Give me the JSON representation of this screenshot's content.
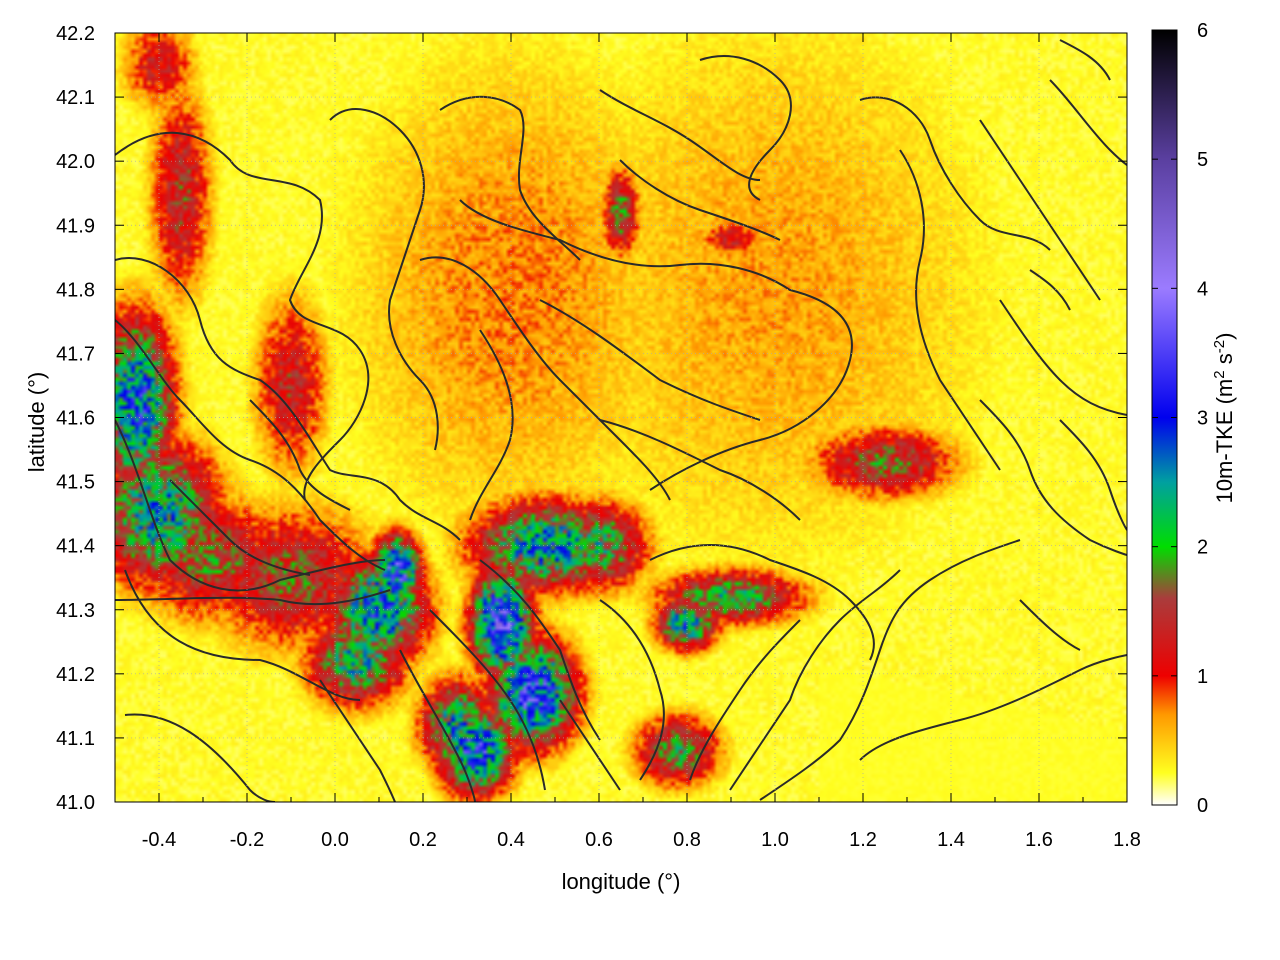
{
  "chart_data": {
    "type": "heatmap",
    "title": "",
    "xlabel": "longitude (°)",
    "ylabel": "latitude (°)",
    "xlim": [
      -0.5,
      1.8
    ],
    "ylim": [
      41.0,
      42.2
    ],
    "x_ticks": [
      "-0.4",
      "-0.2",
      "0.0",
      "0.2",
      "0.4",
      "0.6",
      "0.8",
      "1.0",
      "1.2",
      "1.4",
      "1.6",
      "1.8"
    ],
    "x_tick_values": [
      -0.4,
      -0.2,
      0.0,
      0.2,
      0.4,
      0.6,
      0.8,
      1.0,
      1.2,
      1.4,
      1.6,
      1.8
    ],
    "y_ticks": [
      "41.0",
      "41.1",
      "41.2",
      "41.3",
      "41.4",
      "41.5",
      "41.6",
      "41.7",
      "41.8",
      "41.9",
      "42.0",
      "42.1",
      "42.2"
    ],
    "y_tick_values": [
      41.0,
      41.1,
      41.2,
      41.3,
      41.4,
      41.5,
      41.6,
      41.7,
      41.8,
      41.9,
      42.0,
      42.1,
      42.2
    ],
    "grid": true,
    "colorbar": {
      "label_main": "10m-TKE (m",
      "label_sup1": "2",
      "label_mid": " s",
      "label_sup2": "-2",
      "label_end": ")",
      "range": [
        0,
        6
      ],
      "ticks": [
        "0",
        "1",
        "2",
        "3",
        "4",
        "5",
        "6"
      ],
      "tick_values": [
        0,
        1,
        2,
        3,
        4,
        5,
        6
      ],
      "stops": [
        {
          "v": 0.0,
          "color": "#ffffff"
        },
        {
          "v": 0.25,
          "color": "#ffff20"
        },
        {
          "v": 0.7,
          "color": "#ff9900"
        },
        {
          "v": 1.0,
          "color": "#ee0000"
        },
        {
          "v": 1.6,
          "color": "#aa3c3c"
        },
        {
          "v": 2.0,
          "color": "#00dd00"
        },
        {
          "v": 2.5,
          "color": "#00a0a0"
        },
        {
          "v": 3.0,
          "color": "#0000ee"
        },
        {
          "v": 4.0,
          "color": "#9b7bff"
        },
        {
          "v": 5.0,
          "color": "#5a3fa0"
        },
        {
          "v": 6.0,
          "color": "#000000"
        }
      ]
    },
    "tke_hotspots": [
      {
        "lon": -0.45,
        "lat": 41.62,
        "sx": 0.06,
        "sy": 0.1,
        "v": 2.6
      },
      {
        "lon": -0.4,
        "lat": 41.45,
        "sx": 0.1,
        "sy": 0.08,
        "v": 2.2
      },
      {
        "lon": -0.28,
        "lat": 41.38,
        "sx": 0.12,
        "sy": 0.07,
        "v": 1.4
      },
      {
        "lon": -0.1,
        "lat": 41.35,
        "sx": 0.14,
        "sy": 0.08,
        "v": 1.3
      },
      {
        "lon": 0.1,
        "lat": 41.3,
        "sx": 0.08,
        "sy": 0.06,
        "v": 2.5
      },
      {
        "lon": 0.14,
        "lat": 41.36,
        "sx": 0.04,
        "sy": 0.04,
        "v": 3.0
      },
      {
        "lon": 0.05,
        "lat": 41.22,
        "sx": 0.08,
        "sy": 0.05,
        "v": 2.0
      },
      {
        "lon": 0.38,
        "lat": 41.28,
        "sx": 0.05,
        "sy": 0.06,
        "v": 3.2
      },
      {
        "lon": 0.48,
        "lat": 41.4,
        "sx": 0.12,
        "sy": 0.05,
        "v": 2.3
      },
      {
        "lon": 0.6,
        "lat": 41.4,
        "sx": 0.08,
        "sy": 0.05,
        "v": 1.8
      },
      {
        "lon": 0.45,
        "lat": 41.17,
        "sx": 0.07,
        "sy": 0.06,
        "v": 3.0
      },
      {
        "lon": 0.32,
        "lat": 41.08,
        "sx": 0.06,
        "sy": 0.05,
        "v": 2.8
      },
      {
        "lon": 0.28,
        "lat": 41.12,
        "sx": 0.06,
        "sy": 0.05,
        "v": 2.2
      },
      {
        "lon": 0.9,
        "lat": 41.32,
        "sx": 0.12,
        "sy": 0.03,
        "v": 1.8
      },
      {
        "lon": 0.8,
        "lat": 41.28,
        "sx": 0.05,
        "sy": 0.03,
        "v": 2.3
      },
      {
        "lon": 1.25,
        "lat": 41.53,
        "sx": 0.12,
        "sy": 0.04,
        "v": 1.4
      },
      {
        "lon": -0.35,
        "lat": 41.95,
        "sx": 0.05,
        "sy": 0.12,
        "v": 1.2
      },
      {
        "lon": -0.1,
        "lat": 41.65,
        "sx": 0.06,
        "sy": 0.1,
        "v": 1.1
      },
      {
        "lon": -0.4,
        "lat": 42.15,
        "sx": 0.06,
        "sy": 0.05,
        "v": 1.0
      },
      {
        "lon": 0.65,
        "lat": 41.92,
        "sx": 0.03,
        "sy": 0.05,
        "v": 1.5
      },
      {
        "lon": 0.9,
        "lat": 41.88,
        "sx": 0.05,
        "sy": 0.02,
        "v": 1.0
      },
      {
        "lon": 0.78,
        "lat": 41.08,
        "sx": 0.07,
        "sy": 0.04,
        "v": 1.6
      },
      {
        "lon": 1.0,
        "lat": 41.8,
        "sx": 0.4,
        "sy": 0.35,
        "v": 0.35
      },
      {
        "lon": 0.4,
        "lat": 41.8,
        "sx": 0.3,
        "sy": 0.3,
        "v": 0.45
      }
    ]
  }
}
